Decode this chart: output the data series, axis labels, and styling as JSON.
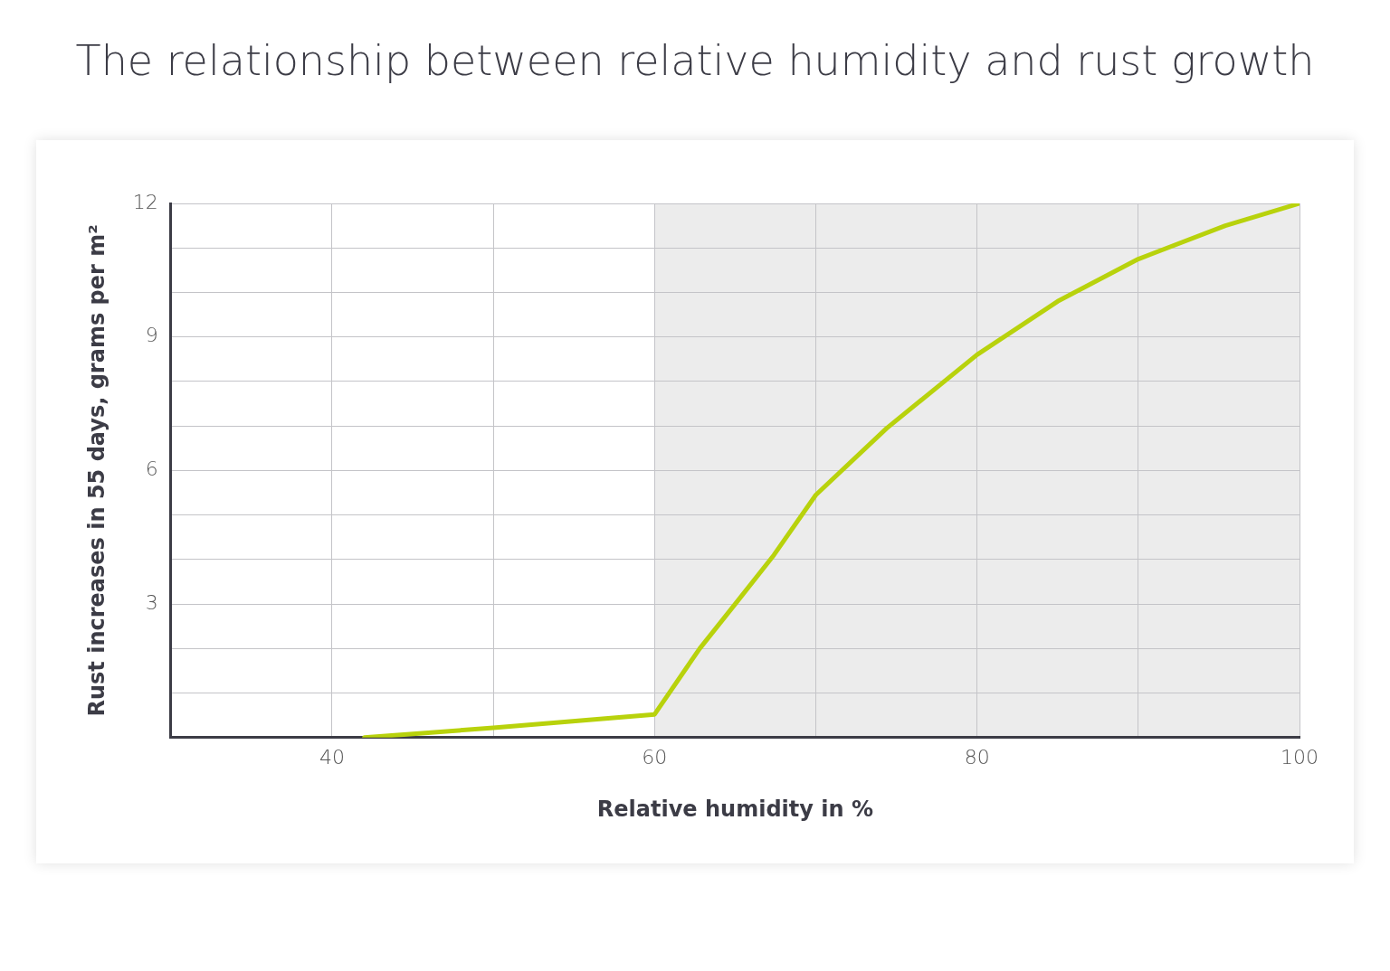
{
  "chart_data": {
    "type": "line",
    "title": "The relationship between relative humidity and rust growth",
    "xlabel": "Relative humidity in %",
    "ylabel": "Rust increases in 55 days, grams per m²",
    "series": [
      {
        "color": "#b8d20c",
        "x": [
          42,
          50,
          60,
          62.8,
          65,
          67.4,
          70,
          74.4,
          80,
          85,
          90,
          95.4,
          100
        ],
        "values": [
          0,
          0.22,
          0.52,
          2.0,
          3.0,
          4.1,
          5.45,
          6.95,
          8.6,
          9.8,
          10.75,
          11.5,
          12
        ]
      }
    ],
    "xlim": [
      30,
      100
    ],
    "xticks": [
      {
        "value": 30,
        "label": null
      },
      40,
      {
        "value": 50,
        "label": null
      },
      60,
      {
        "value": 70,
        "label": null
      },
      80,
      {
        "value": 90,
        "label": null
      },
      100
    ],
    "ylim": [
      0,
      12
    ],
    "yticks": [
      {
        "value": 0,
        "label": null
      },
      {
        "value": 1,
        "label": null
      },
      {
        "value": 2,
        "label": null
      },
      3,
      {
        "value": 4,
        "label": null
      },
      {
        "value": 5,
        "label": null
      },
      6,
      {
        "value": 7,
        "label": null
      },
      {
        "value": 8,
        "label": null
      },
      9,
      {
        "value": 10,
        "label": null
      },
      {
        "value": 11,
        "label": null
      },
      12
    ],
    "bands": [
      {
        "axis": "x",
        "from": 60,
        "to": 100,
        "color": "#ececec"
      }
    ],
    "grid": true,
    "legend": false,
    "marker": "none",
    "line_style": "solid"
  }
}
